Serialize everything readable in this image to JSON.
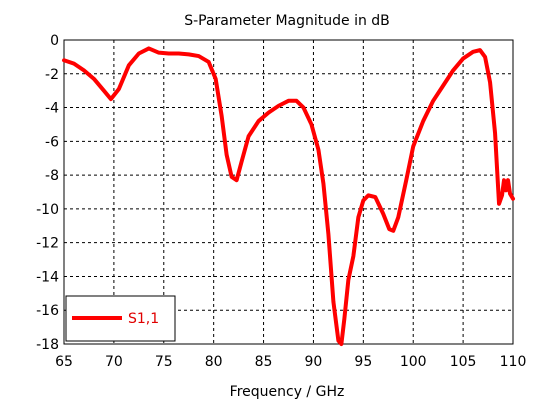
{
  "chart_data": {
    "type": "line",
    "title": "S-Parameter Magnitude in dB",
    "xlabel": "Frequency / GHz",
    "ylabel": "",
    "xlim": [
      65,
      110
    ],
    "ylim": [
      -18,
      0
    ],
    "xticks": [
      65,
      70,
      75,
      80,
      85,
      90,
      95,
      100,
      105,
      110
    ],
    "yticks": [
      0,
      -2,
      -4,
      -6,
      -8,
      -10,
      -12,
      -14,
      -16,
      -18
    ],
    "grid": true,
    "legend": "bottom-left",
    "line_color": "#ff0000",
    "series": [
      {
        "name": "S1,1",
        "x": [
          65,
          66,
          67,
          68,
          69,
          69.7,
          70.5,
          71.5,
          72.5,
          73.5,
          74.5,
          75.5,
          76.5,
          77.5,
          78.5,
          79.5,
          80.2,
          80.8,
          81.3,
          81.8,
          82.3,
          82.8,
          83.5,
          84.5,
          85.5,
          86.5,
          87.5,
          88.3,
          89,
          89.8,
          90.5,
          91,
          91.5,
          92,
          92.5,
          92.8,
          93.1,
          93.5,
          94,
          94.5,
          95,
          95.5,
          96.2,
          97,
          97.6,
          98,
          98.5,
          99.3,
          100,
          101,
          102,
          103,
          104,
          105,
          106,
          106.7,
          107.2,
          107.7,
          108.2,
          108.6,
          108.9,
          109.1,
          109.3,
          109.5,
          109.7,
          110
        ],
        "values": [
          -1.2,
          -1.4,
          -1.8,
          -2.3,
          -3.0,
          -3.5,
          -2.9,
          -1.5,
          -0.8,
          -0.5,
          -0.75,
          -0.8,
          -0.8,
          -0.85,
          -0.95,
          -1.3,
          -2.3,
          -4.5,
          -6.8,
          -8.1,
          -8.3,
          -7.2,
          -5.7,
          -4.8,
          -4.3,
          -3.9,
          -3.6,
          -3.6,
          -4.0,
          -5.0,
          -6.5,
          -8.5,
          -11.5,
          -15.5,
          -17.8,
          -18.0,
          -16.5,
          -14.2,
          -12.8,
          -10.5,
          -9.5,
          -9.2,
          -9.3,
          -10.3,
          -11.2,
          -11.3,
          -10.5,
          -8.3,
          -6.3,
          -4.8,
          -3.6,
          -2.7,
          -1.8,
          -1.1,
          -0.7,
          -0.6,
          -1.0,
          -2.5,
          -5.5,
          -9.7,
          -9.2,
          -8.3,
          -8.9,
          -8.3,
          -9.1,
          -9.4
        ]
      }
    ]
  }
}
